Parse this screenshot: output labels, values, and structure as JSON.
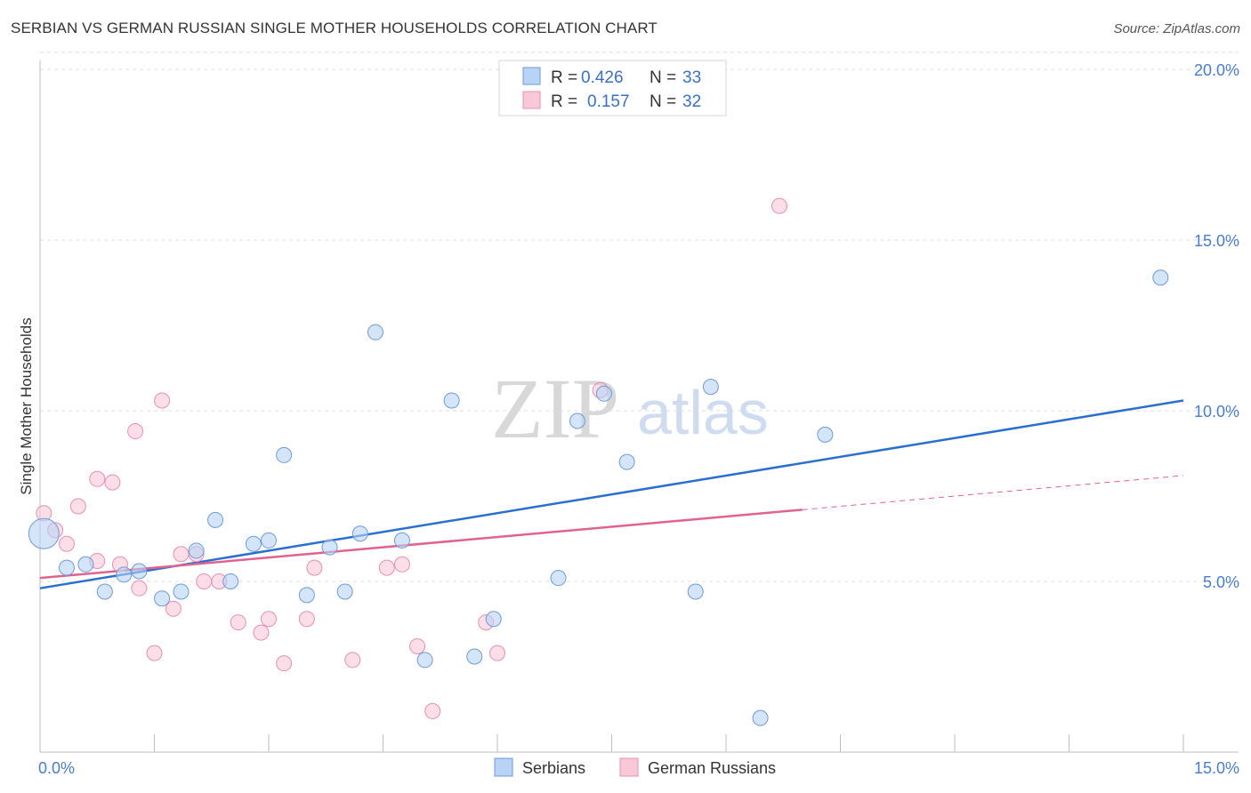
{
  "header": {
    "title": "SERBIAN VS GERMAN RUSSIAN SINGLE MOTHER HOUSEHOLDS CORRELATION CHART",
    "source": "Source: ZipAtlas.com"
  },
  "colors": {
    "serbians_fill": "#b8d3f5",
    "serbians_stroke": "#6f9ad8",
    "serbians_line": "#2a6fcf",
    "german_fill": "#f8c8d8",
    "german_stroke": "#e890ae",
    "german_line": "#e0628f",
    "grid": "#dcdcdc",
    "tick_text": "#4a7cc9"
  },
  "watermark": {
    "zip": "ZIP",
    "atlas": "atlas"
  },
  "legend": {
    "rows": [
      {
        "r_label": "R =",
        "r_value": "0.426",
        "n_label": "N =",
        "n_value": "33"
      },
      {
        "r_label": "R =",
        "r_value": "0.157",
        "n_label": "N =",
        "n_value": "32"
      }
    ]
  },
  "bottom_legend": [
    "Serbians",
    "German Russians"
  ],
  "chart_data": {
    "type": "scatter",
    "title": "SERBIAN VS GERMAN RUSSIAN SINGLE MOTHER HOUSEHOLDS CORRELATION CHART",
    "xlabel": "",
    "ylabel": "Single Mother Households",
    "xlim": [
      0,
      15
    ],
    "ylim": [
      0,
      20
    ],
    "x_tick_labels": [
      "0.0%",
      "15.0%"
    ],
    "y_ticks": [
      5,
      10,
      15,
      20
    ],
    "y_tick_labels": [
      "5.0%",
      "10.0%",
      "15.0%",
      "20.0%"
    ],
    "grid": true,
    "series": [
      {
        "name": "Serbians",
        "r": 0.426,
        "n": 33,
        "trend": {
          "x": [
            0,
            15
          ],
          "y": [
            4.8,
            10.3
          ],
          "dashed_from": null
        },
        "points": [
          {
            "x": 0.05,
            "y": 6.4,
            "big": true
          },
          {
            "x": 0.35,
            "y": 5.4
          },
          {
            "x": 0.6,
            "y": 5.5
          },
          {
            "x": 0.85,
            "y": 4.7
          },
          {
            "x": 1.1,
            "y": 5.2
          },
          {
            "x": 1.3,
            "y": 5.3
          },
          {
            "x": 1.6,
            "y": 4.5
          },
          {
            "x": 1.85,
            "y": 4.7
          },
          {
            "x": 2.05,
            "y": 5.9
          },
          {
            "x": 2.3,
            "y": 6.8
          },
          {
            "x": 2.5,
            "y": 5.0
          },
          {
            "x": 2.8,
            "y": 6.1
          },
          {
            "x": 3.0,
            "y": 6.2
          },
          {
            "x": 3.2,
            "y": 8.7
          },
          {
            "x": 3.5,
            "y": 4.6
          },
          {
            "x": 3.8,
            "y": 6.0
          },
          {
            "x": 4.0,
            "y": 4.7
          },
          {
            "x": 4.2,
            "y": 6.4
          },
          {
            "x": 4.4,
            "y": 12.3
          },
          {
            "x": 4.75,
            "y": 6.2
          },
          {
            "x": 5.05,
            "y": 2.7
          },
          {
            "x": 5.4,
            "y": 10.3
          },
          {
            "x": 5.7,
            "y": 2.8
          },
          {
            "x": 5.95,
            "y": 3.9
          },
          {
            "x": 6.8,
            "y": 5.1
          },
          {
            "x": 7.05,
            "y": 9.7
          },
          {
            "x": 7.4,
            "y": 10.5
          },
          {
            "x": 7.7,
            "y": 8.5
          },
          {
            "x": 8.6,
            "y": 4.7
          },
          {
            "x": 8.8,
            "y": 10.7
          },
          {
            "x": 9.45,
            "y": 1.0
          },
          {
            "x": 10.3,
            "y": 9.3
          },
          {
            "x": 14.7,
            "y": 13.9
          }
        ]
      },
      {
        "name": "German Russians",
        "r": 0.157,
        "n": 32,
        "trend": {
          "x": [
            0,
            15
          ],
          "y": [
            5.1,
            8.1
          ],
          "dashed_from": 10.0
        },
        "points": [
          {
            "x": 0.05,
            "y": 7.0
          },
          {
            "x": 0.2,
            "y": 6.5
          },
          {
            "x": 0.35,
            "y": 6.1
          },
          {
            "x": 0.5,
            "y": 7.2
          },
          {
            "x": 0.75,
            "y": 5.6
          },
          {
            "x": 0.75,
            "y": 8.0
          },
          {
            "x": 0.95,
            "y": 7.9
          },
          {
            "x": 1.05,
            "y": 5.5
          },
          {
            "x": 1.25,
            "y": 9.4
          },
          {
            "x": 1.3,
            "y": 4.8
          },
          {
            "x": 1.5,
            "y": 2.9
          },
          {
            "x": 1.6,
            "y": 10.3
          },
          {
            "x": 1.75,
            "y": 4.2
          },
          {
            "x": 1.85,
            "y": 5.8
          },
          {
            "x": 2.05,
            "y": 5.8
          },
          {
            "x": 2.15,
            "y": 5.0
          },
          {
            "x": 2.35,
            "y": 5.0
          },
          {
            "x": 2.6,
            "y": 3.8
          },
          {
            "x": 2.9,
            "y": 3.5
          },
          {
            "x": 3.0,
            "y": 3.9
          },
          {
            "x": 3.2,
            "y": 2.6
          },
          {
            "x": 3.5,
            "y": 3.9
          },
          {
            "x": 3.6,
            "y": 5.4
          },
          {
            "x": 4.1,
            "y": 2.7
          },
          {
            "x": 4.55,
            "y": 5.4
          },
          {
            "x": 4.75,
            "y": 5.5
          },
          {
            "x": 4.95,
            "y": 3.1
          },
          {
            "x": 5.15,
            "y": 1.2
          },
          {
            "x": 5.85,
            "y": 3.8
          },
          {
            "x": 6.0,
            "y": 2.9
          },
          {
            "x": 7.35,
            "y": 10.6
          },
          {
            "x": 9.7,
            "y": 16.0
          }
        ]
      }
    ]
  }
}
